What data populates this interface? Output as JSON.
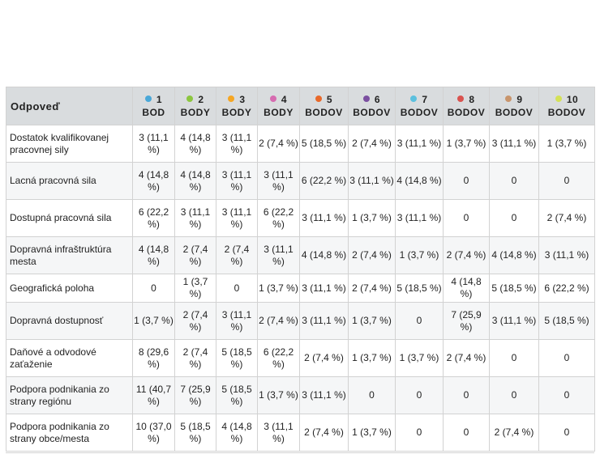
{
  "table": {
    "header_first": "Odpoveď",
    "columns": [
      {
        "num": "1",
        "unit": "BOD",
        "color": "#4aa8d8"
      },
      {
        "num": "2",
        "unit": "BODY",
        "color": "#8cc63f"
      },
      {
        "num": "3",
        "unit": "BODY",
        "color": "#f5a623"
      },
      {
        "num": "4",
        "unit": "BODY",
        "color": "#d66bb0"
      },
      {
        "num": "5",
        "unit": "BODOV",
        "color": "#e8692a"
      },
      {
        "num": "6",
        "unit": "BODOV",
        "color": "#7b4fa0"
      },
      {
        "num": "7",
        "unit": "BODOV",
        "color": "#5bc0de"
      },
      {
        "num": "8",
        "unit": "BODOV",
        "color": "#d9534f"
      },
      {
        "num": "9",
        "unit": "BODOV",
        "color": "#c8956c"
      },
      {
        "num": "10",
        "unit": "BODOV",
        "color": "#d4e157"
      }
    ],
    "rows": [
      {
        "label": "Dostatok kvalifikovanej pracovnej sily",
        "cells": [
          "3 (11,1 %)",
          "4 (14,8 %)",
          "3 (11,1 %)",
          "2 (7,4 %)",
          "5 (18,5 %)",
          "2 (7,4 %)",
          "3 (11,1 %)",
          "1 (3,7 %)",
          "3 (11,1 %)",
          "1 (3,7 %)"
        ]
      },
      {
        "label": "Lacná pracovná sila",
        "cells": [
          "4 (14,8 %)",
          "4 (14,8 %)",
          "3 (11,1 %)",
          "3 (11,1 %)",
          "6 (22,2 %)",
          "3 (11,1 %)",
          "4 (14,8 %)",
          "0",
          "0",
          "0"
        ]
      },
      {
        "label": "Dostupná pracovná sila",
        "cells": [
          "6 (22,2 %)",
          "3 (11,1 %)",
          "3 (11,1 %)",
          "6 (22,2 %)",
          "3 (11,1 %)",
          "1 (3,7 %)",
          "3 (11,1 %)",
          "0",
          "0",
          "2 (7,4 %)"
        ]
      },
      {
        "label": "Dopravná infraštruktúra mesta",
        "cells": [
          "4 (14,8 %)",
          "2 (7,4 %)",
          "2 (7,4 %)",
          "3 (11,1 %)",
          "4 (14,8 %)",
          "2 (7,4 %)",
          "1 (3,7 %)",
          "2 (7,4 %)",
          "4 (14,8 %)",
          "3 (11,1 %)"
        ]
      },
      {
        "label": "Geografická poloha",
        "cells": [
          "0",
          "1 (3,7 %)",
          "0",
          "1 (3,7 %)",
          "3 (11,1 %)",
          "2 (7,4 %)",
          "5 (18,5 %)",
          "4 (14,8 %)",
          "5 (18,5 %)",
          "6 (22,2 %)"
        ]
      },
      {
        "label": "Dopravná dostupnosť",
        "cells": [
          "1 (3,7 %)",
          "2 (7,4 %)",
          "3 (11,1 %)",
          "2 (7,4 %)",
          "3 (11,1 %)",
          "1 (3,7 %)",
          "0",
          "7 (25,9 %)",
          "3 (11,1 %)",
          "5 (18,5 %)"
        ]
      },
      {
        "label": "Daňové a odvodové zaťaženie",
        "cells": [
          "8 (29,6 %)",
          "2 (7,4 %)",
          "5 (18,5 %)",
          "6 (22,2 %)",
          "2 (7,4 %)",
          "1 (3,7 %)",
          "1 (3,7 %)",
          "2 (7,4 %)",
          "0",
          "0"
        ]
      },
      {
        "label": "Podpora podnikania zo strany regiónu",
        "cells": [
          "11 (40,7 %)",
          "7 (25,9 %)",
          "5 (18,5 %)",
          "1 (3,7 %)",
          "3 (11,1 %)",
          "0",
          "0",
          "0",
          "0",
          "0"
        ]
      },
      {
        "label": "Podpora podnikania zo strany obce/mesta",
        "cells": [
          "10 (37,0 %)",
          "5 (18,5 %)",
          "4 (14,8 %)",
          "3 (11,1 %)",
          "2 (7,4 %)",
          "1 (3,7 %)",
          "0",
          "0",
          "2 (7,4 %)",
          "0"
        ]
      }
    ]
  }
}
